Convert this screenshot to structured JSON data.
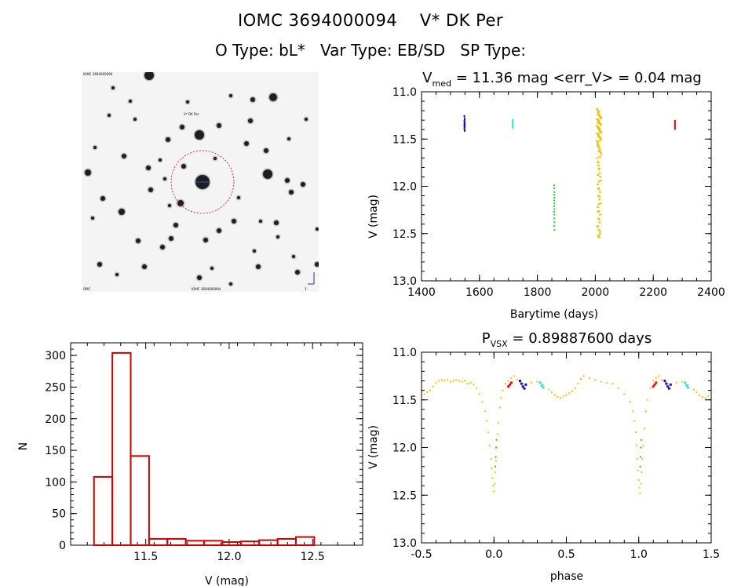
{
  "header": {
    "title_line1": "IOMC 3694000094    V* DK Per",
    "title_line2": "O Type: bL*   Var Type: EB/SD   SP Type:"
  },
  "finder_image": {
    "label_top_left": "IOMC 3694000094",
    "label_target": "V* DK Per",
    "label_bottom_left": "OMC",
    "label_bottom_center": "IOMC 3694000094",
    "label_bottom_right": "1'",
    "circle_color": "#cc0000"
  },
  "colors": {
    "blue": "#1a10b0",
    "cyan": "#30e0e0",
    "red": "#e01010",
    "green": "#20d020",
    "yellow": "#f2c010",
    "hist": "#cc0000"
  },
  "lightcurve": {
    "title_main": "V",
    "title_sub": "med",
    "title_rest": " = 11.36 mag <err_V> = 0.04 mag",
    "xlabel": "Barytime (days)",
    "ylabel": "V (mag)"
  },
  "phased": {
    "title_main": "P",
    "title_sub": "VSX",
    "title_rest": " = 0.89887600 days",
    "xlabel": "phase",
    "ylabel": "V (mag)"
  },
  "histogram": {
    "xlabel": "V (mag)",
    "ylabel": "N"
  },
  "chart_data": [
    {
      "type": "scatter",
      "title": "Vmed = 11.36 mag <err_V> = 0.04 mag",
      "xlabel": "Barytime (days)",
      "ylabel": "V (mag)",
      "xlim": [
        1400,
        2400
      ],
      "ylim": [
        13.0,
        11.0
      ],
      "y_inverted": true,
      "xticks": [
        1400,
        1600,
        1800,
        2000,
        2200,
        2400
      ],
      "yticks": [
        11.0,
        11.5,
        12.0,
        12.5,
        13.0
      ],
      "xtick_labels": [
        "1400",
        "1600",
        "1800",
        "2000",
        "2200",
        "2400"
      ],
      "ytick_labels": [
        "11.0",
        "11.5",
        "12.0",
        "12.5",
        "13.0"
      ],
      "series": [
        {
          "name": "blue",
          "color": "#1a10b0",
          "x": [
            1548,
            1549,
            1548,
            1549,
            1548,
            1549,
            1548,
            1549,
            1548,
            1549
          ],
          "y": [
            11.26,
            11.29,
            11.31,
            11.33,
            11.34,
            11.35,
            11.36,
            11.37,
            11.39,
            11.41
          ]
        },
        {
          "name": "cyan",
          "color": "#30e0e0",
          "x": [
            1715,
            1715,
            1715,
            1715,
            1715
          ],
          "y": [
            11.3,
            11.32,
            11.34,
            11.36,
            11.38
          ]
        },
        {
          "name": "red",
          "color": "#e01010",
          "x": [
            2275,
            2275,
            2275,
            2275,
            2275
          ],
          "y": [
            11.31,
            11.33,
            11.35,
            11.37,
            11.39
          ]
        },
        {
          "name": "green",
          "color": "#20d020",
          "x": [
            1858,
            1858,
            1859,
            1858,
            1859,
            1858,
            1859,
            1858,
            1859,
            1858,
            1859,
            1858,
            1859,
            1858,
            1859
          ],
          "y": [
            11.99,
            12.02,
            12.06,
            12.09,
            12.12,
            12.15,
            12.18,
            12.21,
            12.24,
            12.27,
            12.3,
            12.34,
            12.38,
            12.42,
            12.46
          ]
        },
        {
          "name": "yellow",
          "color": "#f2c010",
          "x": [
            2006,
            2008,
            2010,
            2012,
            2014,
            2016,
            2018,
            2020,
            2007,
            2009,
            2011,
            2013,
            2015,
            2017,
            2019,
            2006,
            2008,
            2010,
            2012,
            2014,
            2016,
            2018,
            2020,
            2007,
            2009,
            2011,
            2013,
            2015,
            2017,
            2019,
            2006,
            2008,
            2010,
            2012,
            2014,
            2016,
            2018,
            2020,
            2007,
            2009,
            2011,
            2013,
            2015,
            2017,
            2019,
            2008,
            2012,
            2016,
            2010,
            2014,
            2018,
            2009,
            2013,
            2017,
            2011,
            2015,
            2008,
            2012,
            2016,
            2010,
            2014,
            2018,
            2009,
            2013,
            2017,
            2011,
            2015,
            2008,
            2012,
            2016,
            2010,
            2014,
            2009,
            2013,
            2011,
            2015,
            2012,
            2010,
            2014,
            2008,
            2016,
            2011,
            2013,
            2009
          ],
          "y": [
            11.18,
            11.2,
            11.22,
            11.24,
            11.25,
            11.26,
            11.27,
            11.28,
            11.29,
            11.3,
            11.31,
            11.32,
            11.33,
            11.34,
            11.35,
            11.36,
            11.37,
            11.38,
            11.39,
            11.4,
            11.41,
            11.42,
            11.43,
            11.44,
            11.45,
            11.46,
            11.47,
            11.48,
            11.49,
            11.5,
            11.52,
            11.54,
            11.56,
            11.58,
            11.6,
            11.62,
            11.64,
            11.66,
            11.7,
            11.74,
            11.78,
            11.82,
            11.86,
            11.9,
            11.94,
            11.98,
            12.02,
            12.06,
            12.1,
            12.14,
            12.18,
            12.22,
            12.26,
            12.3,
            12.34,
            12.38,
            12.42,
            12.46,
            12.5,
            12.52,
            12.54,
            11.28,
            11.33,
            11.38,
            11.43,
            11.47,
            11.52,
            11.57,
            11.63,
            11.69,
            11.75,
            11.81,
            11.88,
            11.95,
            12.03,
            12.11,
            12.19,
            12.27,
            12.35,
            12.43,
            12.48,
            12.53,
            11.21,
            11.24
          ]
        }
      ]
    },
    {
      "type": "bar",
      "title": "",
      "xlabel": "V (mag)",
      "ylabel": "N",
      "xlim": [
        11.05,
        12.8
      ],
      "ylim": [
        0,
        320
      ],
      "xticks": [
        11.5,
        12.0,
        12.5
      ],
      "xtick_labels": [
        "11.5",
        "12.0",
        "12.5"
      ],
      "yticks": [
        0,
        50,
        100,
        150,
        200,
        250,
        300
      ],
      "ytick_labels": [
        "0",
        "50",
        "100",
        "150",
        "200",
        "250",
        "300"
      ],
      "bin_width": 0.11,
      "bin_starts": [
        11.19,
        11.3,
        11.41,
        11.52,
        11.63,
        11.74,
        11.85,
        11.96,
        12.07,
        12.18,
        12.29,
        12.4
      ],
      "values": [
        108,
        304,
        141,
        10,
        10,
        7,
        7,
        5,
        6,
        8,
        10,
        13
      ],
      "color": "#cc0000"
    },
    {
      "type": "scatter",
      "title": "PVSX = 0.89887600 days",
      "xlabel": "phase",
      "ylabel": "V (mag)",
      "xlim": [
        -0.5,
        1.5
      ],
      "ylim": [
        13.0,
        11.0
      ],
      "y_inverted": true,
      "xticks": [
        -0.5,
        0.0,
        0.5,
        1.0,
        1.5
      ],
      "xtick_labels": [
        "-0.5",
        "0.0",
        "0.5",
        "1.0",
        "1.5"
      ],
      "yticks": [
        11.0,
        11.5,
        12.0,
        12.5,
        13.0
      ],
      "ytick_labels": [
        "11.0",
        "11.5",
        "12.0",
        "12.5",
        "13.0"
      ],
      "series": [
        {
          "name": "yellow",
          "color": "#f2c010",
          "x": [
            -0.48,
            -0.46,
            -0.44,
            -0.42,
            -0.4,
            -0.38,
            -0.36,
            -0.34,
            -0.32,
            -0.3,
            -0.28,
            -0.26,
            -0.24,
            -0.22,
            -0.2,
            -0.18,
            -0.16,
            -0.14,
            -0.12,
            -0.1,
            -0.08,
            -0.06,
            -0.05,
            -0.04,
            -0.03,
            -0.02,
            -0.015,
            -0.01,
            -0.005,
            0.0,
            0.005,
            0.01,
            0.015,
            0.02,
            0.025,
            0.03,
            0.04,
            0.05,
            0.06,
            0.08,
            0.1,
            0.12,
            0.14,
            0.16,
            0.18,
            0.2,
            0.22,
            0.26,
            0.3,
            0.34,
            0.38,
            0.4,
            0.42,
            0.44,
            0.46,
            0.48,
            0.5,
            0.52,
            0.54,
            0.56,
            0.58,
            0.6,
            0.62,
            0.66,
            0.7,
            0.74,
            0.78,
            0.82,
            0.86,
            0.9,
            0.94,
            0.96,
            0.97,
            0.98,
            0.985,
            0.99,
            0.995,
            1.0,
            1.005,
            1.01,
            1.015,
            1.02,
            1.025,
            1.03,
            1.04,
            1.05,
            1.06,
            1.08,
            1.1,
            1.12,
            1.14,
            1.16,
            1.18,
            1.2,
            1.22,
            1.26,
            1.3,
            1.34,
            1.38,
            1.4,
            1.42,
            1.44,
            1.46,
            1.48
          ],
          "y": [
            11.44,
            11.42,
            11.4,
            11.36,
            11.32,
            11.3,
            11.29,
            11.3,
            11.29,
            11.31,
            11.3,
            11.29,
            11.3,
            11.31,
            11.3,
            11.33,
            11.32,
            11.34,
            11.38,
            11.44,
            11.52,
            11.62,
            11.72,
            11.84,
            11.98,
            12.12,
            12.22,
            12.32,
            12.4,
            12.46,
            12.38,
            12.26,
            12.14,
            12.0,
            11.86,
            11.74,
            11.58,
            11.48,
            11.4,
            11.33,
            11.3,
            11.27,
            11.25,
            11.29,
            11.31,
            11.33,
            11.34,
            11.32,
            11.31,
            11.34,
            11.39,
            11.42,
            11.45,
            11.47,
            11.48,
            11.46,
            11.45,
            11.43,
            11.41,
            11.38,
            11.33,
            11.28,
            11.25,
            11.27,
            11.29,
            11.31,
            11.32,
            11.33,
            11.38,
            11.44,
            11.52,
            11.62,
            11.72,
            11.84,
            11.98,
            12.12,
            12.24,
            12.34,
            12.42,
            12.48,
            12.38,
            12.26,
            12.12,
            11.98,
            11.8,
            11.62,
            11.5,
            11.38,
            11.3,
            11.27,
            11.25,
            11.29,
            11.31,
            11.33,
            11.34,
            11.32,
            11.31,
            11.34,
            11.39,
            11.42,
            11.45,
            11.47,
            11.48,
            11.46
          ]
        },
        {
          "name": "green",
          "color": "#20d020",
          "x": [
            0.01,
            0.012,
            0.015,
            0.018,
            1.01,
            1.012,
            1.015,
            1.018
          ],
          "y": [
            12.2,
            12.1,
            12.0,
            11.92,
            12.2,
            12.1,
            12.0,
            11.92
          ]
        },
        {
          "name": "red",
          "color": "#e01010",
          "x": [
            0.1,
            0.11,
            0.12,
            1.1,
            1.11,
            1.12
          ],
          "y": [
            11.36,
            11.34,
            11.32,
            11.36,
            11.34,
            11.32
          ]
        },
        {
          "name": "blue",
          "color": "#1a10b0",
          "x": [
            0.18,
            0.19,
            0.2,
            0.21,
            0.22,
            1.18,
            1.19,
            1.2,
            1.21,
            1.22
          ],
          "y": [
            11.3,
            11.33,
            11.36,
            11.38,
            11.34,
            11.3,
            11.33,
            11.36,
            11.38,
            11.34
          ]
        },
        {
          "name": "cyan",
          "color": "#30e0e0",
          "x": [
            0.32,
            0.33,
            0.34,
            1.32,
            1.33,
            1.34
          ],
          "y": [
            11.32,
            11.35,
            11.37,
            11.32,
            11.35,
            11.37
          ]
        }
      ]
    }
  ]
}
